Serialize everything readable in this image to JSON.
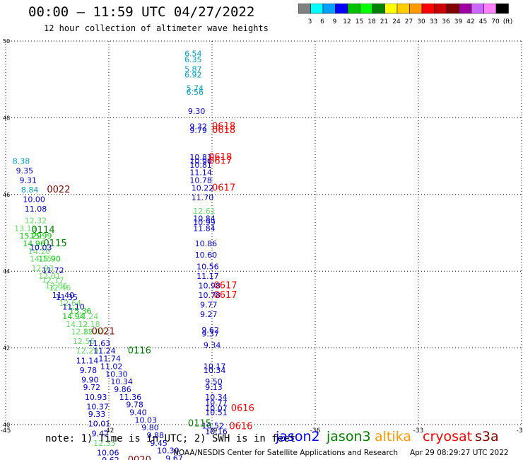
{
  "header": {
    "title": "00:00 – 11:59 UTC 04/27/2022",
    "subtitle": "12 hour collection of altimeter wave heights"
  },
  "legend": {
    "colors": [
      "#808080",
      "#00ffff",
      "#00a0ff",
      "#0000ff",
      "#00c000",
      "#00ff00",
      "#008000",
      "#ffff00",
      "#ffcc00",
      "#ff9900",
      "#ff0000",
      "#cc0000",
      "#800000",
      "#a000a0",
      "#cc66ff",
      "#ff80ff",
      "#000000"
    ],
    "labels": [
      "3",
      "6",
      "9",
      "12",
      "15",
      "18",
      "21",
      "24",
      "27",
      "30",
      "33",
      "36",
      "39",
      "42",
      "45",
      "70",
      "(ft)"
    ]
  },
  "footer": {
    "note": "note: 1) Time is in UTC; 2) SWH is in feet",
    "credit": "NOAA/NESDIS Center for Satellite Applications and Research",
    "timestamp": "Apr 29 08:29:27 UTC 2022"
  },
  "satellites": [
    {
      "name": "jason2",
      "color": "#0000ff"
    },
    {
      "name": "jason3",
      "color": "#008000"
    },
    {
      "name": "altika",
      "color": "#ff9900"
    },
    {
      "name": "cryosat",
      "color": "#ff0000"
    },
    {
      "name": "s3a",
      "color": "#800000"
    }
  ],
  "chart_data": {
    "type": "scatter",
    "xlim": [
      -45,
      -30
    ],
    "ylim": [
      40,
      50
    ],
    "xticks": [
      "-45",
      "-42",
      "-39",
      "-36",
      "-33",
      "-30"
    ],
    "yticks": [
      "40",
      "42",
      "44",
      "46",
      "48",
      "50"
    ],
    "grid": true,
    "points": [
      {
        "lon": -39.8,
        "lat": 49.6,
        "t": "6.54",
        "c": "#00a0c0"
      },
      {
        "lon": -39.8,
        "lat": 49.45,
        "t": "6.35",
        "c": "#00a0c0"
      },
      {
        "lon": -39.8,
        "lat": 49.2,
        "t": "5.87",
        "c": "#00a0c0"
      },
      {
        "lon": -39.8,
        "lat": 49.05,
        "t": "6.92",
        "c": "#00a0c0"
      },
      {
        "lon": -39.75,
        "lat": 48.7,
        "t": "5.74",
        "c": "#00a0c0"
      },
      {
        "lon": -39.75,
        "lat": 48.6,
        "t": "6.56",
        "c": "#00a0c0"
      },
      {
        "lon": -39.7,
        "lat": 48.1,
        "t": "9.30",
        "c": "#0000cc"
      },
      {
        "lon": -39.65,
        "lat": 47.7,
        "t": "9.32",
        "c": "#0000cc"
      },
      {
        "lon": -39.65,
        "lat": 47.6,
        "t": "9.79",
        "c": "#0000cc"
      },
      {
        "lon": -39.0,
        "lat": 47.7,
        "t": "0618",
        "c": "#ff0000"
      },
      {
        "lon": -39.0,
        "lat": 47.6,
        "t": "0618",
        "c": "#ff0000"
      },
      {
        "lon": -39.65,
        "lat": 46.9,
        "t": "10.83",
        "c": "#0000cc"
      },
      {
        "lon": -39.65,
        "lat": 46.8,
        "t": "10.96",
        "c": "#0000cc"
      },
      {
        "lon": -39.65,
        "lat": 46.7,
        "t": "10.81",
        "c": "#0000cc"
      },
      {
        "lon": -39.1,
        "lat": 46.9,
        "t": "0618",
        "c": "#ff0000"
      },
      {
        "lon": -39.1,
        "lat": 46.8,
        "t": "0617",
        "c": "#ff0000"
      },
      {
        "lon": -39.65,
        "lat": 46.5,
        "t": "11.14",
        "c": "#0000cc"
      },
      {
        "lon": -39.65,
        "lat": 46.3,
        "t": "10.78",
        "c": "#0000cc"
      },
      {
        "lon": -39.6,
        "lat": 46.1,
        "t": "10.22",
        "c": "#0000cc"
      },
      {
        "lon": -39.6,
        "lat": 45.85,
        "t": "11.70",
        "c": "#0000cc"
      },
      {
        "lon": -39.0,
        "lat": 46.1,
        "t": "0617",
        "c": "#ff0000"
      },
      {
        "lon": -39.55,
        "lat": 45.5,
        "t": "12.61",
        "c": "#66dd66"
      },
      {
        "lon": -39.55,
        "lat": 45.3,
        "t": "10.84",
        "c": "#0000cc"
      },
      {
        "lon": -39.55,
        "lat": 45.2,
        "t": "10.99",
        "c": "#0000cc"
      },
      {
        "lon": -39.55,
        "lat": 45.05,
        "t": "11.84",
        "c": "#0000cc"
      },
      {
        "lon": -39.5,
        "lat": 44.65,
        "t": "10.86",
        "c": "#0000cc"
      },
      {
        "lon": -39.5,
        "lat": 44.35,
        "t": "10.60",
        "c": "#0000cc"
      },
      {
        "lon": -39.45,
        "lat": 44.05,
        "t": "10.56",
        "c": "#0000cc"
      },
      {
        "lon": -39.45,
        "lat": 43.8,
        "t": "11.17",
        "c": "#0000cc"
      },
      {
        "lon": -39.4,
        "lat": 43.55,
        "t": "10.98",
        "c": "#0000cc"
      },
      {
        "lon": -39.4,
        "lat": 43.3,
        "t": "10.78",
        "c": "#0000cc"
      },
      {
        "lon": -39.35,
        "lat": 43.05,
        "t": "9.77",
        "c": "#0000cc"
      },
      {
        "lon": -39.35,
        "lat": 42.8,
        "t": "9.27",
        "c": "#0000cc"
      },
      {
        "lon": -38.95,
        "lat": 43.55,
        "t": "0617",
        "c": "#ff0000"
      },
      {
        "lon": -38.95,
        "lat": 43.3,
        "t": "0617",
        "c": "#ff0000"
      },
      {
        "lon": -39.3,
        "lat": 42.4,
        "t": "9.62",
        "c": "#0000cc"
      },
      {
        "lon": -39.3,
        "lat": 42.3,
        "t": "9.37",
        "c": "#0000cc"
      },
      {
        "lon": -39.25,
        "lat": 42.0,
        "t": "9.34",
        "c": "#0000cc"
      },
      {
        "lon": -39.25,
        "lat": 41.45,
        "t": "10.17",
        "c": "#0000cc"
      },
      {
        "lon": -39.25,
        "lat": 41.35,
        "t": "10.34",
        "c": "#0000cc"
      },
      {
        "lon": -39.2,
        "lat": 41.05,
        "t": "9.50",
        "c": "#0000cc"
      },
      {
        "lon": -39.2,
        "lat": 40.9,
        "t": "9.13",
        "c": "#0000cc"
      },
      {
        "lon": -39.2,
        "lat": 40.65,
        "t": "10.34",
        "c": "#0000cc"
      },
      {
        "lon": -39.2,
        "lat": 40.5,
        "t": "10.77",
        "c": "#0000cc"
      },
      {
        "lon": -39.2,
        "lat": 40.35,
        "t": "10.07",
        "c": "#0000cc"
      },
      {
        "lon": -39.2,
        "lat": 40.25,
        "t": "10.51",
        "c": "#0000cc"
      },
      {
        "lon": -38.45,
        "lat": 40.35,
        "t": "0616",
        "c": "#ff0000"
      },
      {
        "lon": -38.5,
        "lat": 39.88,
        "t": "0616",
        "c": "#ff0000"
      },
      {
        "lon": -39.3,
        "lat": 39.9,
        "t": "10.52",
        "c": "#0000cc"
      },
      {
        "lon": -39.2,
        "lat": 39.75,
        "t": "10.16",
        "c": "#0000cc"
      },
      {
        "lon": -39.7,
        "lat": 39.95,
        "t": "0115",
        "c": "#008000"
      },
      {
        "lon": -44.8,
        "lat": 46.8,
        "t": "8.38",
        "c": "#00a0c0"
      },
      {
        "lon": -44.7,
        "lat": 46.55,
        "t": "9.35",
        "c": "#0000cc"
      },
      {
        "lon": -44.6,
        "lat": 46.3,
        "t": "9.31",
        "c": "#0000cc"
      },
      {
        "lon": -44.55,
        "lat": 46.05,
        "t": "8.84",
        "c": "#00a0c0"
      },
      {
        "lon": -44.5,
        "lat": 45.8,
        "t": "10.00",
        "c": "#0000cc"
      },
      {
        "lon": -44.45,
        "lat": 45.55,
        "t": "11.08",
        "c": "#0000cc"
      },
      {
        "lon": -43.8,
        "lat": 46.05,
        "t": "0022",
        "c": "#800000"
      },
      {
        "lon": -44.45,
        "lat": 45.25,
        "t": "12.32",
        "c": "#66dd66"
      },
      {
        "lon": -44.75,
        "lat": 45.05,
        "t": "13.13",
        "c": "#66dd66"
      },
      {
        "lon": -44.6,
        "lat": 44.85,
        "t": "15.29",
        "c": "#00cc00"
      },
      {
        "lon": -44.3,
        "lat": 44.85,
        "t": "15.99",
        "c": "#00cc00"
      },
      {
        "lon": -44.5,
        "lat": 44.65,
        "t": "14.96",
        "c": "#00cc00"
      },
      {
        "lon": -44.25,
        "lat": 45.0,
        "t": "0114",
        "c": "#008000"
      },
      {
        "lon": -43.9,
        "lat": 44.65,
        "t": "0115",
        "c": "#008000"
      },
      {
        "lon": -44.35,
        "lat": 44.45,
        "t": "14.16",
        "c": "#66dd66"
      },
      {
        "lon": -44.3,
        "lat": 44.55,
        "t": "10.03",
        "c": "#0000cc"
      },
      {
        "lon": -44.3,
        "lat": 44.25,
        "t": "14.15",
        "c": "#66dd66"
      },
      {
        "lon": -44.05,
        "lat": 44.25,
        "t": "15.90",
        "c": "#00cc00"
      },
      {
        "lon": -44.25,
        "lat": 44.0,
        "t": "12.93",
        "c": "#66dd66"
      },
      {
        "lon": -43.95,
        "lat": 43.95,
        "t": "11.72",
        "c": "#0000cc"
      },
      {
        "lon": -44.05,
        "lat": 43.8,
        "t": "12.01",
        "c": "#66dd66"
      },
      {
        "lon": -43.95,
        "lat": 43.7,
        "t": "12.17",
        "c": "#66dd66"
      },
      {
        "lon": -43.85,
        "lat": 43.55,
        "t": "12.86",
        "c": "#66dd66"
      },
      {
        "lon": -43.75,
        "lat": 43.5,
        "t": "12.46",
        "c": "#66dd66"
      },
      {
        "lon": -43.65,
        "lat": 43.3,
        "t": "11.40",
        "c": "#0000cc"
      },
      {
        "lon": -43.55,
        "lat": 43.25,
        "t": "11.35",
        "c": "#0000cc"
      },
      {
        "lon": -43.45,
        "lat": 43.1,
        "t": "12.64",
        "c": "#66dd66"
      },
      {
        "lon": -43.35,
        "lat": 43.0,
        "t": "11.10",
        "c": "#0000cc"
      },
      {
        "lon": -43.15,
        "lat": 42.9,
        "t": "15.36",
        "c": "#00cc00"
      },
      {
        "lon": -43.35,
        "lat": 42.75,
        "t": "14.94",
        "c": "#00cc00"
      },
      {
        "lon": -42.95,
        "lat": 42.75,
        "t": "14.24",
        "c": "#66dd66"
      },
      {
        "lon": -43.25,
        "lat": 42.55,
        "t": "14.12",
        "c": "#66dd66"
      },
      {
        "lon": -42.9,
        "lat": 42.55,
        "t": "12.18",
        "c": "#66dd66"
      },
      {
        "lon": -43.1,
        "lat": 42.35,
        "t": "12.89",
        "c": "#66dd66"
      },
      {
        "lon": -42.75,
        "lat": 42.35,
        "t": "12.07",
        "c": "#66dd66"
      },
      {
        "lon": -42.5,
        "lat": 42.35,
        "t": "0021",
        "c": "#800000"
      },
      {
        "lon": -43.05,
        "lat": 42.1,
        "t": "12.56",
        "c": "#66dd66"
      },
      {
        "lon": -42.6,
        "lat": 42.05,
        "t": "11.63",
        "c": "#0000cc"
      },
      {
        "lon": -42.95,
        "lat": 41.85,
        "t": "12.29",
        "c": "#66dd66"
      },
      {
        "lon": -42.45,
        "lat": 41.85,
        "t": "11.24",
        "c": "#0000cc"
      },
      {
        "lon": -41.45,
        "lat": 41.85,
        "t": "0116",
        "c": "#008000"
      },
      {
        "lon": -42.95,
        "lat": 41.6,
        "t": "11.14",
        "c": "#0000cc"
      },
      {
        "lon": -42.3,
        "lat": 41.65,
        "t": "11.74",
        "c": "#0000cc"
      },
      {
        "lon": -42.25,
        "lat": 41.45,
        "t": "11.02",
        "c": "#0000cc"
      },
      {
        "lon": -42.85,
        "lat": 41.35,
        "t": "9.78",
        "c": "#0000cc"
      },
      {
        "lon": -42.1,
        "lat": 41.25,
        "t": "10.30",
        "c": "#0000cc"
      },
      {
        "lon": -42.8,
        "lat": 41.1,
        "t": "9.90",
        "c": "#0000cc"
      },
      {
        "lon": -41.95,
        "lat": 41.05,
        "t": "10.34",
        "c": "#0000cc"
      },
      {
        "lon": -42.75,
        "lat": 40.9,
        "t": "9.72",
        "c": "#0000cc"
      },
      {
        "lon": -41.85,
        "lat": 40.85,
        "t": "9.86",
        "c": "#0000cc"
      },
      {
        "lon": -42.7,
        "lat": 40.65,
        "t": "10.93",
        "c": "#0000cc"
      },
      {
        "lon": -41.7,
        "lat": 40.65,
        "t": "11.36",
        "c": "#0000cc"
      },
      {
        "lon": -42.65,
        "lat": 40.4,
        "t": "10.37",
        "c": "#0000cc"
      },
      {
        "lon": -41.5,
        "lat": 40.45,
        "t": "9.78",
        "c": "#0000cc"
      },
      {
        "lon": -42.6,
        "lat": 40.2,
        "t": "9.33",
        "c": "#0000cc"
      },
      {
        "lon": -41.4,
        "lat": 40.25,
        "t": "9.40",
        "c": "#0000cc"
      },
      {
        "lon": -42.6,
        "lat": 39.95,
        "t": "10.01",
        "c": "#0000cc"
      },
      {
        "lon": -41.25,
        "lat": 40.05,
        "t": "10.03",
        "c": "#0000cc"
      },
      {
        "lon": -42.5,
        "lat": 39.7,
        "t": "9.42",
        "c": "#0000cc"
      },
      {
        "lon": -41.05,
        "lat": 39.85,
        "t": "9.80",
        "c": "#0000cc"
      },
      {
        "lon": -42.45,
        "lat": 39.45,
        "t": "12.33",
        "c": "#66dd66"
      },
      {
        "lon": -40.9,
        "lat": 39.65,
        "t": "9.88",
        "c": "#0000cc"
      },
      {
        "lon": -40.8,
        "lat": 39.45,
        "t": "9.45",
        "c": "#0000cc"
      },
      {
        "lon": -42.35,
        "lat": 39.2,
        "t": "10.06",
        "c": "#0000cc"
      },
      {
        "lon": -40.6,
        "lat": 39.25,
        "t": "10.39",
        "c": "#0000cc"
      },
      {
        "lon": -42.2,
        "lat": 39.0,
        "t": "9.62",
        "c": "#0000cc"
      },
      {
        "lon": -40.35,
        "lat": 39.05,
        "t": "9.67",
        "c": "#0000cc"
      },
      {
        "lon": -41.45,
        "lat": 39.0,
        "t": "0020",
        "c": "#800000"
      },
      {
        "lon": -40.0,
        "lat": 38.85,
        "t": "10.35",
        "c": "#0000cc"
      }
    ]
  }
}
